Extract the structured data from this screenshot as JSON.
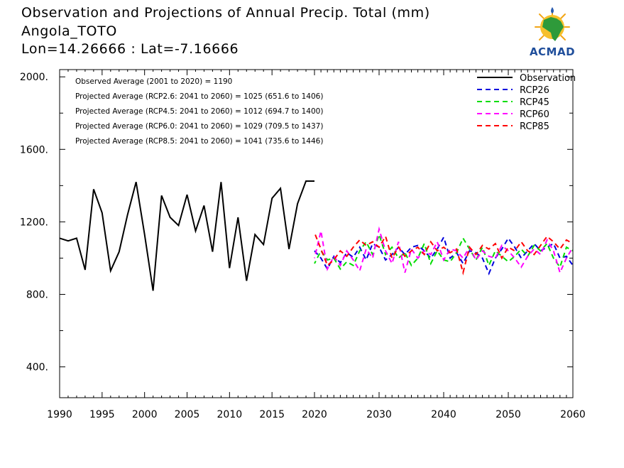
{
  "header": {
    "title": "Observation and Projections of Annual Precip. Total (mm)",
    "location": "Angola_TOTO",
    "coords": "Lon=14.26666 : Lat=-7.16666"
  },
  "logo": {
    "text": "ACMAD"
  },
  "chart_data": {
    "type": "line",
    "title": "Observation and Projections of Annual Precip. Total (mm)",
    "xlim": [
      1990,
      2060
    ],
    "ylim": [
      230,
      2040
    ],
    "x_ticks": [
      {
        "value": 1990,
        "label": "1990"
      },
      {
        "value": 1995,
        "label": "1995"
      },
      {
        "value": 2000,
        "label": "2000"
      },
      {
        "value": 2005,
        "label": "2005"
      },
      {
        "value": 2010,
        "label": "2010"
      },
      {
        "value": 2015,
        "label": "2015"
      },
      {
        "value": 2020,
        "label": "2020"
      },
      {
        "value": 2030,
        "label": "2030"
      },
      {
        "value": 2040,
        "label": "2040"
      },
      {
        "value": 2050,
        "label": "2050"
      },
      {
        "value": 2060,
        "label": "2060"
      }
    ],
    "y_ticks": [
      {
        "value": 400,
        "label": "400."
      },
      {
        "value": 800,
        "label": "800."
      },
      {
        "value": 1200,
        "label": "1200."
      },
      {
        "value": 1600,
        "label": "1600."
      },
      {
        "value": 2000,
        "label": "2000."
      }
    ],
    "y_minor_ticks": [
      600,
      1000,
      1400,
      1800
    ],
    "x_split_year": 2020,
    "annotations": [
      "Observed Average (2001 to 2020) = 1190",
      "Projected Average (RCP2.6: 2041 to 2060) = 1025 (651.6 to 1406)",
      "Projected Average (RCP4.5: 2041 to 2060) = 1012 (694.7 to 1400)",
      "Projected Average (RCP6.0: 2041 to 2060) = 1029 (709.5 to 1437)",
      "Projected Average (RCP8.5: 2041 to 2060) = 1041 (735.6 to 1446)"
    ],
    "legend_position": "top-right",
    "observation": {
      "name": "Observation",
      "color": "#000000",
      "x": [
        1990,
        1991,
        1992,
        1993,
        1994,
        1995,
        1996,
        1997,
        1998,
        1999,
        2000,
        2001,
        2002,
        2003,
        2004,
        2005,
        2006,
        2007,
        2008,
        2009,
        2010,
        2011,
        2012,
        2013,
        2014,
        2015,
        2016,
        2017,
        2018,
        2019,
        2020
      ],
      "y": [
        1110,
        1095,
        1110,
        935,
        1380,
        1250,
        930,
        1035,
        1240,
        1420,
        1130,
        820,
        1345,
        1225,
        1180,
        1350,
        1150,
        1290,
        1035,
        1420,
        945,
        1225,
        875,
        1130,
        1075,
        1330,
        1385,
        1050,
        1300,
        1425,
        1425
      ]
    },
    "series": [
      {
        "name": "RCP26",
        "color": "#0000dd",
        "x": [
          2020,
          2021,
          2022,
          2023,
          2024,
          2025,
          2026,
          2027,
          2028,
          2029,
          2030,
          2031,
          2032,
          2033,
          2034,
          2035,
          2036,
          2037,
          2038,
          2039,
          2040,
          2041,
          2042,
          2043,
          2044,
          2045,
          2046,
          2047,
          2048,
          2049,
          2050,
          2051,
          2052,
          2053,
          2054,
          2055,
          2056,
          2057,
          2058,
          2059,
          2060
        ],
        "y": [
          1040,
          1000,
          940,
          1010,
          975,
          1030,
          1005,
          1060,
          990,
          1080,
          1060,
          990,
          1020,
          1060,
          1020,
          1060,
          1070,
          1040,
          1000,
          1050,
          1115,
          1000,
          1030,
          970,
          1040,
          1030,
          1000,
          915,
          1000,
          1050,
          1110,
          1060,
          1000,
          1040,
          1080,
          1040,
          1060,
          1080,
          1000,
          1010,
          960
        ]
      },
      {
        "name": "RCP45",
        "color": "#00dd00",
        "x": [
          2020,
          2021,
          2022,
          2023,
          2024,
          2025,
          2026,
          2027,
          2028,
          2029,
          2030,
          2031,
          2032,
          2033,
          2034,
          2035,
          2036,
          2037,
          2038,
          2039,
          2040,
          2041,
          2042,
          2043,
          2044,
          2045,
          2046,
          2047,
          2048,
          2049,
          2050,
          2051,
          2052,
          2053,
          2054,
          2055,
          2056,
          2057,
          2058,
          2059,
          2060
        ],
        "y": [
          970,
          1040,
          990,
          1000,
          940,
          980,
          960,
          1040,
          1090,
          1020,
          1130,
          1020,
          1060,
          1000,
          1030,
          960,
          1000,
          1080,
          970,
          1040,
          990,
          980,
          1030,
          1110,
          1050,
          990,
          1060,
          960,
          1040,
          1010,
          980,
          1010,
          1050,
          1010,
          1070,
          1040,
          1080,
          1000,
          950,
          1060,
          1040
        ]
      },
      {
        "name": "RCP60",
        "color": "#ff00ff",
        "x": [
          2020,
          2021,
          2022,
          2023,
          2024,
          2025,
          2026,
          2027,
          2028,
          2029,
          2030,
          2031,
          2032,
          2033,
          2034,
          2035,
          2036,
          2037,
          2038,
          2039,
          2040,
          2041,
          2042,
          2043,
          2044,
          2045,
          2046,
          2047,
          2048,
          2049,
          2050,
          2051,
          2052,
          2053,
          2054,
          2055,
          2056,
          2057,
          2058,
          2059,
          2060
        ],
        "y": [
          1000,
          1150,
          940,
          1010,
          960,
          1040,
          990,
          930,
          1050,
          1000,
          1160,
          1040,
          970,
          1090,
          920,
          1050,
          1000,
          1040,
          1020,
          1090,
          990,
          1050,
          1040,
          1000,
          1060,
          990,
          1040,
          1010,
          1000,
          1070,
          1040,
          1000,
          950,
          1010,
          1050,
          1020,
          1100,
          1040,
          920,
          1000,
          1060
        ]
      },
      {
        "name": "RCP85",
        "color": "#ff0000",
        "x": [
          2020,
          2021,
          2022,
          2023,
          2024,
          2025,
          2026,
          2027,
          2028,
          2029,
          2030,
          2031,
          2032,
          2033,
          2034,
          2035,
          2036,
          2037,
          2038,
          2039,
          2040,
          2041,
          2042,
          2043,
          2044,
          2045,
          2046,
          2047,
          2048,
          2049,
          2050,
          2051,
          2052,
          2053,
          2054,
          2055,
          2056,
          2057,
          2058,
          2059,
          2060
        ],
        "y": [
          1140,
          1050,
          960,
          990,
          1040,
          1010,
          1060,
          1100,
          1070,
          1090,
          1060,
          1120,
          1000,
          1060,
          1010,
          1040,
          1060,
          1020,
          1090,
          1040,
          1060,
          1030,
          1050,
          920,
          1060,
          1020,
          1070,
          1050,
          1080,
          1000,
          1060,
          1040,
          1090,
          1040,
          1020,
          1070,
          1120,
          1090,
          1050,
          1100,
          1080
        ]
      }
    ]
  }
}
